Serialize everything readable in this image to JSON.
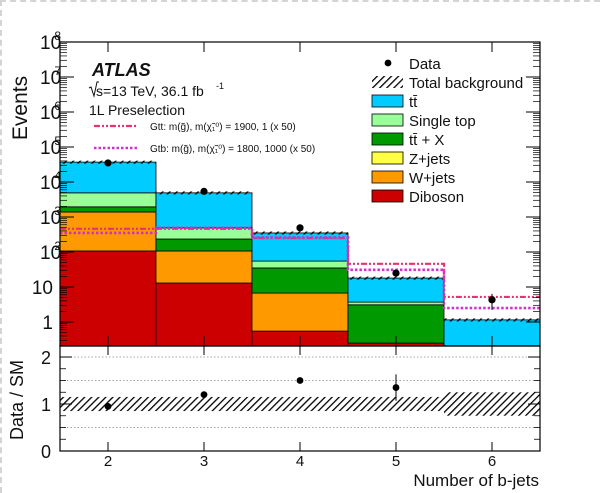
{
  "chart_data": [
    {
      "type": "bar",
      "subtype": "stacked-histogram-log",
      "title": "",
      "experiment_label": "ATLAS",
      "energy_label": "√s=13 TeV, 36.1 fb⁻¹",
      "selection_label": "1L Preselection",
      "xlabel": "Number of b-jets",
      "ylabel": "Events",
      "yscale": "log",
      "ylim": [
        0.22,
        100000000
      ],
      "xlim": [
        1.5,
        6.5
      ],
      "categories": [
        "2",
        "3",
        "4",
        "5",
        "6"
      ],
      "y_tick_labels": [
        "1",
        "10",
        "10²",
        "10³",
        "10⁴",
        "10⁵",
        "10⁶",
        "10⁷",
        "10⁸"
      ],
      "x_tick_labels": [
        "2",
        "3",
        "4",
        "5",
        "6"
      ],
      "series": [
        {
          "name": "Diboson",
          "color": "#cc0000",
          "values": [
            107,
            13,
            0.55,
            0.25,
            0.0
          ]
        },
        {
          "name": "W+jets",
          "color": "#ff9900",
          "values": [
            1283,
            94,
            6.15,
            0.0,
            0.0
          ]
        },
        {
          "name": "Z+jets",
          "color": "#ffff44",
          "values": [
            0,
            0,
            0,
            0,
            0
          ]
        },
        {
          "name": "tt̄ + X",
          "color": "#009900",
          "values": [
            560,
            128,
            28.3,
            2.85,
            0.0
          ]
        },
        {
          "name": "Single top",
          "color": "#99ff99",
          "values": [
            2950,
            255,
            20,
            0.6,
            0.05
          ]
        },
        {
          "name": "tt̄",
          "color": "#00ccff",
          "values": [
            32100,
            4410,
            295,
            14.3,
            1.1
          ]
        }
      ],
      "total_background": [
        37000,
        4900,
        350,
        18,
        1.15
      ],
      "data": [
        35000,
        5400,
        490,
        25,
        4.3
      ],
      "signals": [
        {
          "name": "Gtt: m(g̃), m(χ̃₁⁰) = 1900, 1 (x 50)",
          "color": "#e8336e",
          "style": "dash-dot",
          "values": [
            460,
            460,
            250,
            46,
            5.2
          ]
        },
        {
          "name": "Gtb: m(g̃), m(χ̃₁⁰) = 1800, 1000 (x 50)",
          "color": "#cc33cc",
          "style": "dotted",
          "values": [
            350,
            490,
            260,
            31,
            2.5
          ]
        }
      ],
      "legend": [
        "Data",
        "Total background",
        "tt̄",
        "Single top",
        "tt̄ + X",
        "Z+jets",
        "W+jets",
        "Diboson"
      ],
      "legend_position": "upper right",
      "grid": false
    },
    {
      "type": "scatter",
      "subtype": "ratio-panel",
      "ylabel": "Data / SM",
      "xlabel": "Number of b-jets",
      "ylim": [
        0,
        2.24
      ],
      "y_tick_labels": [
        "0",
        "1",
        "2"
      ],
      "x": [
        2,
        3,
        4,
        5,
        6
      ],
      "values": [
        0.95,
        1.2,
        1.5,
        1.35,
        null
      ],
      "uncertainty_band": {
        "low": [
          0.85,
          0.85,
          0.85,
          0.85,
          0.75
        ],
        "high": [
          1.15,
          1.15,
          1.15,
          1.15,
          1.25
        ]
      },
      "reference_lines": [
        0.5,
        1.5,
        2.0
      ],
      "grid": false
    }
  ],
  "labels": {
    "atlas": "ATLAS",
    "sqrt_s": "s=13 TeV, 36.1 fb",
    "lumi_exp": "-1",
    "selection": "1L Preselection",
    "gtt": "Gtt: m(g̃), m(χ̃₁⁰) = 1900, 1 (x 50)",
    "gtb": "Gtb: m(g̃), m(χ̃₁⁰) = 1800, 1000 (x 50)",
    "yaxis_main": "Events",
    "yaxis_ratio": "Data / SM",
    "xaxis": "Number of b-jets"
  }
}
